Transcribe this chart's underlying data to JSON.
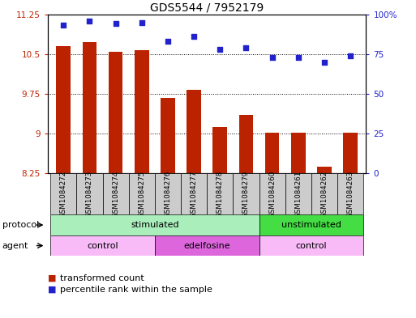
{
  "title": "GDS5544 / 7952179",
  "samples": [
    "GSM1084272",
    "GSM1084273",
    "GSM1084274",
    "GSM1084275",
    "GSM1084276",
    "GSM1084277",
    "GSM1084278",
    "GSM1084279",
    "GSM1084260",
    "GSM1084261",
    "GSM1084262",
    "GSM1084263"
  ],
  "transformed_count": [
    10.65,
    10.72,
    10.54,
    10.57,
    9.67,
    9.82,
    9.12,
    9.35,
    9.01,
    9.02,
    8.38,
    9.01
  ],
  "percentile_rank": [
    93,
    96,
    94,
    95,
    83,
    86,
    78,
    79,
    73,
    73,
    70,
    74
  ],
  "ylim_left": [
    8.25,
    11.25
  ],
  "ylim_right": [
    0,
    100
  ],
  "yticks_left": [
    8.25,
    9.0,
    9.75,
    10.5,
    11.25
  ],
  "yticks_right": [
    0,
    25,
    50,
    75,
    100
  ],
  "ytick_labels_left": [
    "8.25",
    "9",
    "9.75",
    "10.5",
    "11.25"
  ],
  "ytick_labels_right": [
    "0",
    "25",
    "50",
    "75",
    "100%"
  ],
  "bar_color": "#bb2200",
  "scatter_color": "#2222cc",
  "protocol_stimulated_color": "#aaeebb",
  "protocol_unstimulated_color": "#44dd44",
  "agent_control_color": "#f8bbf8",
  "agent_edelfosine_color": "#dd66dd",
  "sample_bg_color": "#cccccc",
  "protocol_label": "protocol",
  "agent_label": "agent",
  "protocol_groups": [
    {
      "label": "stimulated",
      "start": 0,
      "end": 8
    },
    {
      "label": "unstimulated",
      "start": 8,
      "end": 12
    }
  ],
  "agent_groups": [
    {
      "label": "control",
      "start": 0,
      "end": 4
    },
    {
      "label": "edelfosine",
      "start": 4,
      "end": 8
    },
    {
      "label": "control",
      "start": 8,
      "end": 12
    }
  ],
  "legend_items": [
    {
      "label": "transformed count",
      "color": "#bb2200"
    },
    {
      "label": "percentile rank within the sample",
      "color": "#2222cc"
    }
  ],
  "title_fontsize": 10,
  "tick_fontsize": 7.5,
  "sample_fontsize": 6.2,
  "row_fontsize": 8,
  "legend_fontsize": 8
}
